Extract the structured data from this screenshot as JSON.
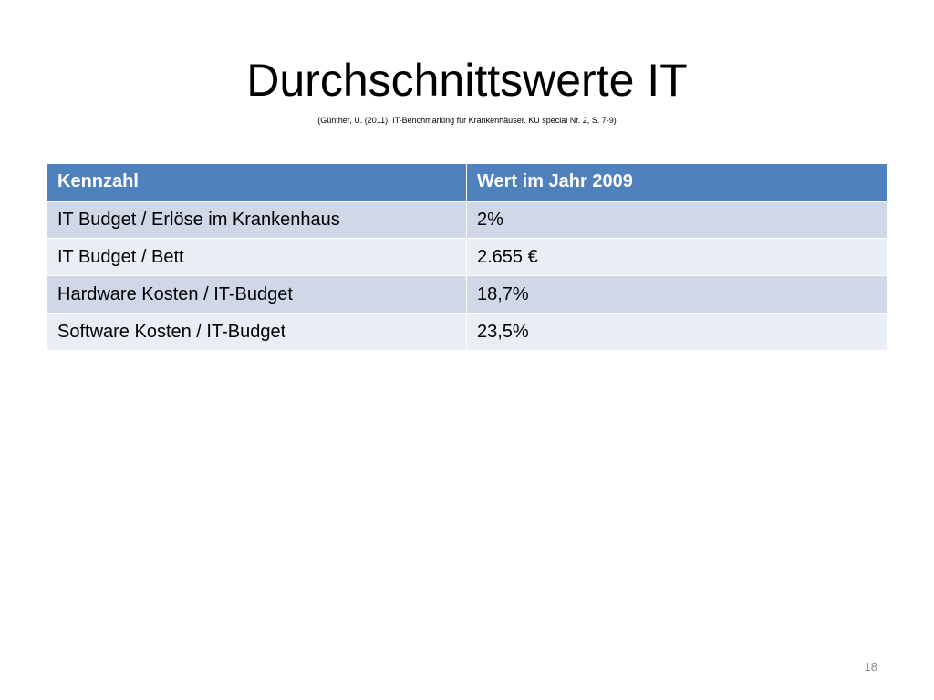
{
  "slide": {
    "title": "Durchschnittswerte IT",
    "citation": "(Günther, U. (2011): IT-Benchmarking für Krankenhäuser. KU special Nr. 2, S. 7-9)",
    "page_number": "18"
  },
  "table": {
    "headers": [
      "Kennzahl",
      "Wert im Jahr 2009"
    ],
    "rows": [
      [
        "IT Budget / Erlöse im Krankenhaus",
        "2%"
      ],
      [
        "IT Budget / Bett",
        "2.655 €"
      ],
      [
        "Hardware Kosten / IT-Budget",
        "18,7%"
      ],
      [
        "Software Kosten / IT-Budget",
        "23,5%"
      ]
    ]
  },
  "colors": {
    "header_bg": "#4f81bd",
    "row_odd_bg": "#d0d8e8",
    "row_even_bg": "#e9edf4",
    "page_number": "#8b8b8b"
  }
}
